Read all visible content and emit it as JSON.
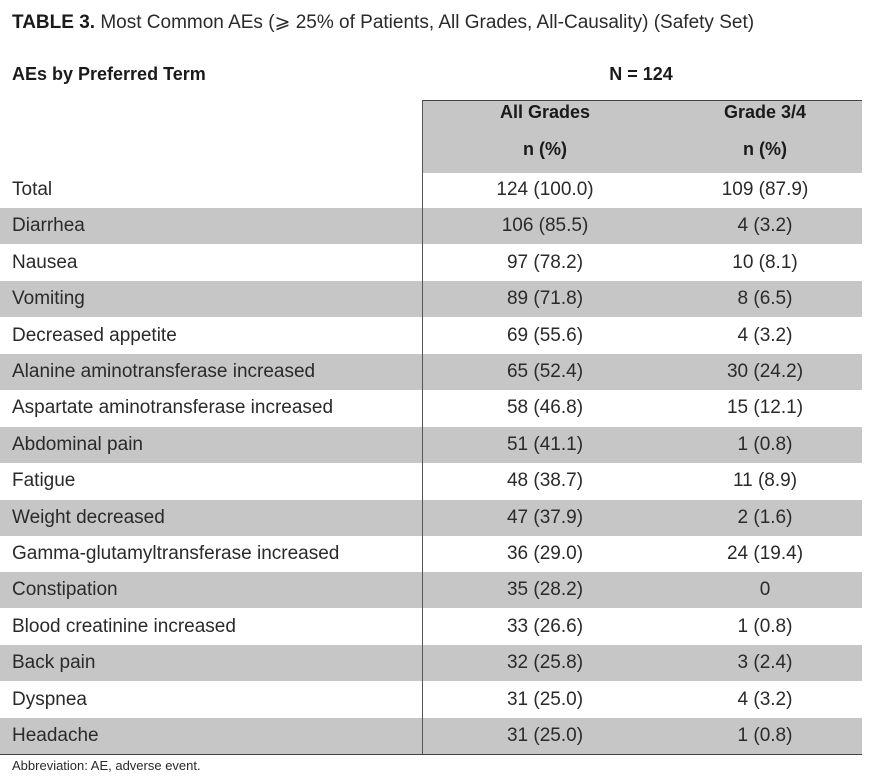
{
  "caption": {
    "label": "TABLE 3.",
    "text": " Most Common AEs (⩾ 25% of Patients, All Grades, All-Causality) (Safety Set)"
  },
  "table": {
    "header_left": "AEs by Preferred Term",
    "header_n": "N = 124",
    "col_all_line1": "All Grades",
    "col_all_line2": "n (%)",
    "col_g34_line1": "Grade 3/4",
    "col_g34_line2": "n (%)",
    "rows": [
      {
        "term": "Total",
        "all": "124 (100.0)",
        "g34": "109 (87.9)"
      },
      {
        "term": "Diarrhea",
        "all": "106 (85.5)",
        "g34": "4 (3.2)"
      },
      {
        "term": "Nausea",
        "all": "97 (78.2)",
        "g34": "10 (8.1)"
      },
      {
        "term": "Vomiting",
        "all": "89 (71.8)",
        "g34": "8 (6.5)"
      },
      {
        "term": "Decreased appetite",
        "all": "69 (55.6)",
        "g34": "4 (3.2)"
      },
      {
        "term": "Alanine aminotransferase increased",
        "all": "65 (52.4)",
        "g34": "30 (24.2)"
      },
      {
        "term": "Aspartate aminotransferase increased",
        "all": "58 (46.8)",
        "g34": "15 (12.1)"
      },
      {
        "term": "Abdominal pain",
        "all": "51 (41.1)",
        "g34": "1 (0.8)"
      },
      {
        "term": "Fatigue",
        "all": "48 (38.7)",
        "g34": "11 (8.9)"
      },
      {
        "term": "Weight decreased",
        "all": "47 (37.9)",
        "g34": "2 (1.6)"
      },
      {
        "term": "Gamma-glutamyltransferase increased",
        "all": "36 (29.0)",
        "g34": "24 (19.4)"
      },
      {
        "term": "Constipation",
        "all": "35 (28.2)",
        "g34": "0"
      },
      {
        "term": "Blood creatinine increased",
        "all": "33 (26.6)",
        "g34": "1 (0.8)"
      },
      {
        "term": "Back pain",
        "all": "32 (25.8)",
        "g34": "3 (2.4)"
      },
      {
        "term": "Dyspnea",
        "all": "31 (25.0)",
        "g34": "4 (3.2)"
      },
      {
        "term": "Headache",
        "all": "31 (25.0)",
        "g34": "1 (0.8)"
      }
    ]
  },
  "footnote": "Abbreviation: AE, adverse event.",
  "colors": {
    "row_shade": "#c6c6c6",
    "text": "#222222"
  }
}
